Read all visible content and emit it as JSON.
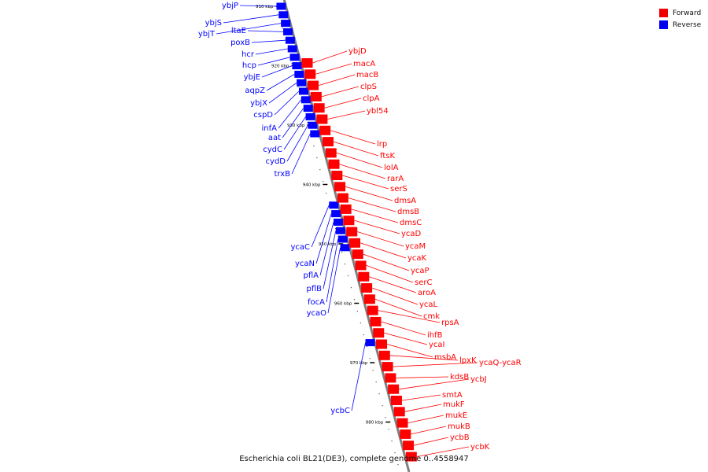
{
  "title": "Escherichia coli BL21(DE3), complete genome 0..4558947",
  "colors": {
    "forward": "#ff0000",
    "reverse": "#0000ff",
    "axis": "#808080"
  },
  "legend": [
    {
      "label": "Forward",
      "color": "#ff0000"
    },
    {
      "label": "Reverse",
      "color": "#0000ff"
    }
  ],
  "scale": {
    "start_kbp": 905,
    "end_kbp": 985
  },
  "ticks": [
    {
      "kbp": 910,
      "label": "910 kbp"
    },
    {
      "kbp": 920,
      "label": "920 kbp"
    },
    {
      "kbp": 930,
      "label": "930 kbp"
    },
    {
      "kbp": 940,
      "label": "940 kbp"
    },
    {
      "kbp": 950,
      "label": "950 kbp"
    },
    {
      "kbp": 960,
      "label": "960 kbp"
    },
    {
      "kbp": 970,
      "label": "970 kbp"
    },
    {
      "kbp": 980,
      "label": "980 kbp"
    }
  ],
  "reverse_genes": [
    "ybjP",
    "ybjS",
    "ybjT",
    "ltaE",
    "poxB",
    "hcr",
    "hcp",
    "ybjE",
    "aqpZ",
    "ybjX",
    "cspD",
    "infA",
    "aat",
    "cydC",
    "cydD",
    "trxB",
    "ycaC",
    "ycaN",
    "pflA",
    "pflB",
    "focA",
    "ycaO",
    "ycbC"
  ],
  "forward_genes": [
    "ybjD",
    "macA",
    "macB",
    "clpS",
    "clpA",
    "ybl54",
    "lrp",
    "ftsK",
    "lolA",
    "rarA",
    "serS",
    "dmsA",
    "dmsB",
    "dmsC",
    "ycaD",
    "ycaM",
    "ycaK",
    "ycaP",
    "serC",
    "aroA",
    "ycaL",
    "cmk",
    "rpsA",
    "ihfB",
    "ycaI",
    "msbA",
    "lpxK",
    "ycaQ-ycaR",
    "kdsB",
    "ycbJ",
    "smtA",
    "mukF",
    "mukE",
    "mukB",
    "ycbB",
    "ycbK"
  ]
}
